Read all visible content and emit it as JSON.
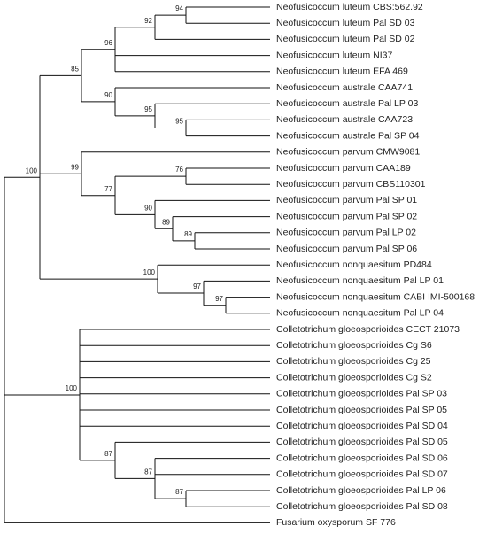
{
  "tree": {
    "children": [
      {
        "support": 100,
        "children": [
          {
            "support": 85,
            "children": [
              {
                "support": 96,
                "children": [
                  {
                    "support": 92,
                    "children": [
                      {
                        "support": 94,
                        "children": [
                          {
                            "label": "Neofusicoccum luteum CBS:562.92"
                          },
                          {
                            "label": "Neofusicoccum luteum Pal SD 03"
                          }
                        ]
                      },
                      {
                        "label": "Neofusicoccum luteum Pal SD 02"
                      }
                    ]
                  },
                  {
                    "label": "Neofusicoccum luteum NI37"
                  },
                  {
                    "label": "Neofusicoccum luteum EFA 469"
                  }
                ]
              },
              {
                "support": 90,
                "children": [
                  {
                    "label": "Neofusicoccum australe CAA741"
                  },
                  {
                    "support": 95,
                    "children": [
                      {
                        "label": "Neofusicoccum australe Pal LP 03"
                      },
                      {
                        "support": 95,
                        "children": [
                          {
                            "label": "Neofusicoccum australe CAA723"
                          },
                          {
                            "label": "Neofusicoccum australe Pal SP 04"
                          }
                        ]
                      }
                    ]
                  }
                ]
              }
            ]
          },
          {
            "support": 99,
            "children": [
              {
                "label": "Neofusicoccum parvum CMW9081"
              },
              {
                "support": 77,
                "children": [
                  {
                    "support": 76,
                    "children": [
                      {
                        "label": "Neofusicoccum parvum CAA189"
                      },
                      {
                        "label": "Neofusicoccum parvum CBS110301"
                      }
                    ]
                  },
                  {
                    "support": 90,
                    "children": [
                      {
                        "label": "Neofusicoccum parvum Pal SP 01"
                      },
                      {
                        "support": 89,
                        "children": [
                          {
                            "label": "Neofusicoccum parvum Pal SP 02"
                          },
                          {
                            "support": 89,
                            "children": [
                              {
                                "label": "Neofusicoccum parvum Pal LP 02"
                              },
                              {
                                "label": "Neofusicoccum parvum Pal SP 06"
                              }
                            ]
                          }
                        ]
                      }
                    ]
                  }
                ]
              }
            ]
          },
          {
            "support": 100,
            "children": [
              {
                "label": "Neofusicoccum nonquaesitum PD484"
              },
              {
                "support": 97,
                "children": [
                  {
                    "label": "Neofusicoccum nonquaesitum Pal LP 01"
                  },
                  {
                    "support": 97,
                    "children": [
                      {
                        "label": "Neofusicoccum nonquaesitum CABI IMI-500168"
                      },
                      {
                        "label": "Neofusicoccum nonquaesitum Pal LP 04"
                      }
                    ]
                  }
                ]
              }
            ]
          }
        ]
      },
      {
        "support": 100,
        "children": [
          {
            "label": "Colletotrichum gloeosporioides CECT 21073"
          },
          {
            "label": "Colletotrichum gloeosporioides Cg S6"
          },
          {
            "label": "Colletotrichum gloeosporioides Cg 25"
          },
          {
            "label": "Colletotrichum gloeosporioides Cg S2"
          },
          {
            "label": "Colletotrichum gloeosporioides Pal SP 03"
          },
          {
            "label": "Colletotrichum gloeosporioides Pal SP 05"
          },
          {
            "label": "Colletotrichum gloeosporioides Pal SD 04"
          },
          {
            "support": 87,
            "children": [
              {
                "label": "Colletotrichum gloeosporioides Pal SD 05"
              },
              {
                "support": 87,
                "children": [
                  {
                    "label": "Colletotrichum gloeosporioides Pal SD 06"
                  },
                  {
                    "label": "Colletotrichum gloeosporioides Pal SD 07"
                  },
                  {
                    "support": 87,
                    "children": [
                      {
                        "label": "Colletotrichum gloeosporioides Pal LP 06"
                      },
                      {
                        "label": "Colletotrichum gloeosporioides Pal SD 08"
                      }
                    ]
                  }
                ]
              }
            ]
          }
        ]
      },
      {
        "label": "Fusarium oxysporum SF 776"
      }
    ]
  }
}
